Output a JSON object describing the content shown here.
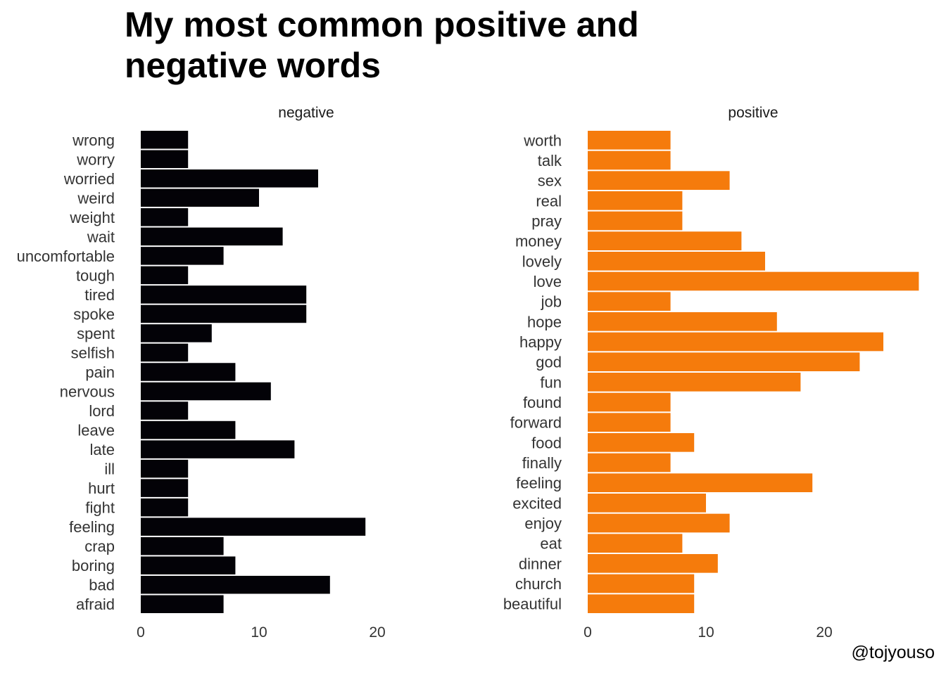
{
  "title_lines": [
    "My most common positive and",
    "negative words"
  ],
  "caption": "@tojyouso",
  "colors": {
    "negative": "#030207",
    "positive": "#f57b0c",
    "label": "#333333"
  },
  "chart_data": [
    {
      "type": "bar",
      "orientation": "horizontal",
      "panel": "negative",
      "title": "negative",
      "xlim": [
        0,
        19
      ],
      "x_ticks": [
        0,
        10,
        20
      ],
      "categories": [
        "wrong",
        "worry",
        "worried",
        "weird",
        "weight",
        "wait",
        "uncomfortable",
        "tough",
        "tired",
        "spoke",
        "spent",
        "selfish",
        "pain",
        "nervous",
        "lord",
        "leave",
        "late",
        "ill",
        "hurt",
        "fight",
        "feeling",
        "crap",
        "boring",
        "bad",
        "afraid"
      ],
      "values": [
        4,
        4,
        15,
        10,
        4,
        12,
        7,
        4,
        14,
        14,
        6,
        4,
        8,
        11,
        4,
        8,
        13,
        4,
        4,
        4,
        19,
        7,
        8,
        16,
        7
      ]
    },
    {
      "type": "bar",
      "orientation": "horizontal",
      "panel": "positive",
      "title": "positive",
      "xlim": [
        0,
        28
      ],
      "x_ticks": [
        0,
        10,
        20
      ],
      "categories": [
        "worth",
        "talk",
        "sex",
        "real",
        "pray",
        "money",
        "lovely",
        "love",
        "job",
        "hope",
        "happy",
        "god",
        "fun",
        "found",
        "forward",
        "food",
        "finally",
        "feeling",
        "excited",
        "enjoy",
        "eat",
        "dinner",
        "church",
        "beautiful"
      ],
      "values": [
        7,
        7,
        12,
        8,
        8,
        13,
        15,
        28,
        7,
        16,
        25,
        23,
        18,
        7,
        7,
        9,
        7,
        19,
        10,
        12,
        8,
        11,
        9,
        9
      ]
    }
  ]
}
